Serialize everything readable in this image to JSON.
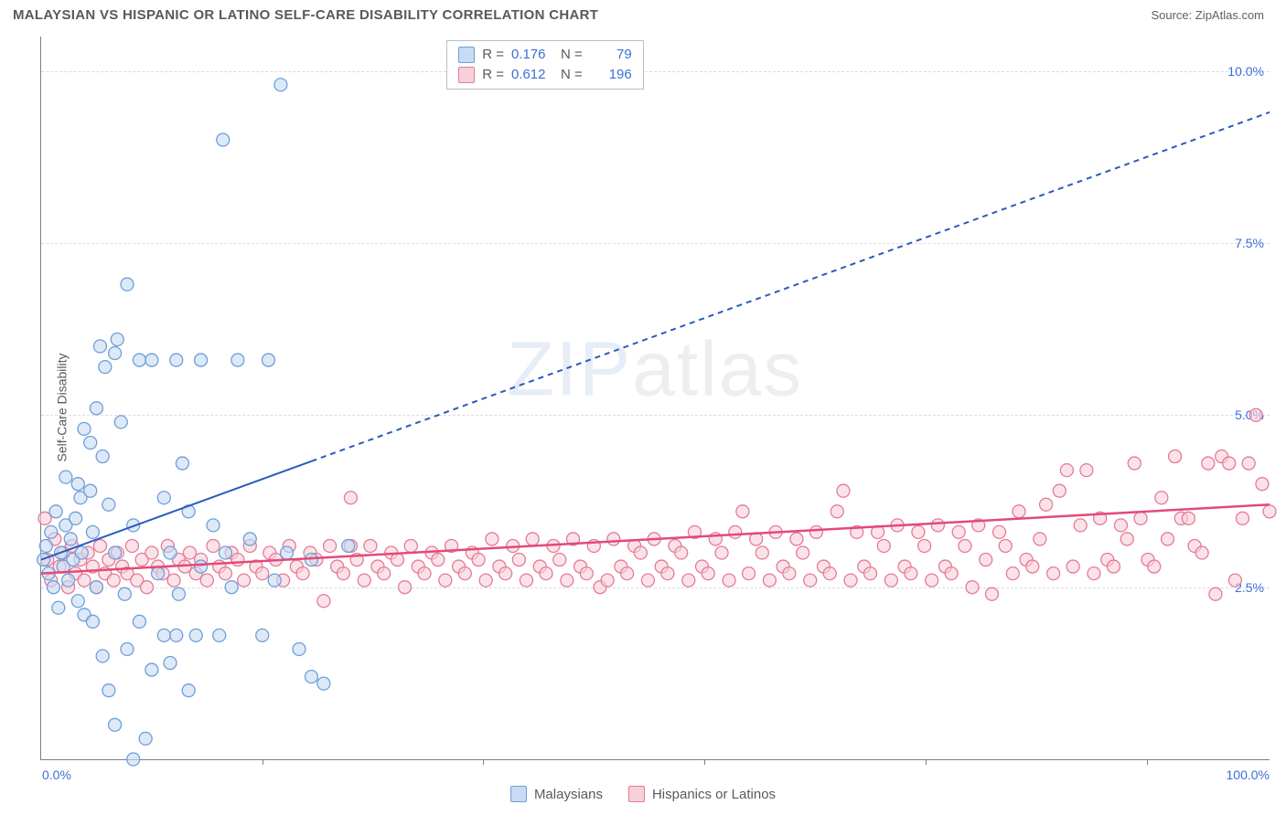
{
  "title": "MALAYSIAN VS HISPANIC OR LATINO SELF-CARE DISABILITY CORRELATION CHART",
  "source": "Source: ZipAtlas.com",
  "ylabel": "Self-Care Disability",
  "watermark_a": "ZIP",
  "watermark_b": "atlas",
  "chart": {
    "type": "scatter",
    "xlim": [
      0,
      100
    ],
    "ylim": [
      0,
      10.5
    ],
    "x_axis_label_min": "0.0%",
    "x_axis_label_max": "100.0%",
    "y_ticks": [
      2.5,
      5.0,
      7.5,
      10.0
    ],
    "y_tick_labels": [
      "2.5%",
      "5.0%",
      "7.5%",
      "10.0%"
    ],
    "x_minor_ticks": [
      18,
      36,
      54,
      72,
      90
    ],
    "grid_color": "#d9dde2",
    "axis_color": "#7a7f86",
    "background_color": "#ffffff",
    "marker_radius": 7,
    "marker_stroke_width": 1.3,
    "series": [
      {
        "name": "Malaysians",
        "color_fill": "#c7dbf2",
        "color_stroke": "#6f9fd8",
        "R": "0.176",
        "N": "79",
        "trend": {
          "x1": 0,
          "y1": 2.9,
          "x2": 100,
          "y2": 9.4,
          "solid_until_x": 22,
          "color": "#2a5bbd",
          "width": 2,
          "dash": "6,5"
        },
        "points": [
          [
            0.2,
            2.9
          ],
          [
            0.4,
            3.1
          ],
          [
            0.6,
            2.7
          ],
          [
            0.8,
            3.3
          ],
          [
            1.0,
            2.5
          ],
          [
            1.2,
            3.6
          ],
          [
            1.4,
            2.2
          ],
          [
            1.6,
            3.0
          ],
          [
            1.8,
            2.8
          ],
          [
            2.0,
            3.4
          ],
          [
            2.2,
            2.6
          ],
          [
            2.4,
            3.2
          ],
          [
            2.6,
            2.9
          ],
          [
            2.8,
            3.5
          ],
          [
            3.0,
            2.3
          ],
          [
            3.2,
            3.8
          ],
          [
            3.3,
            3.0
          ],
          [
            3.5,
            2.1
          ],
          [
            3.5,
            4.8
          ],
          [
            4.0,
            4.6
          ],
          [
            4.0,
            3.9
          ],
          [
            4.2,
            2.0
          ],
          [
            4.2,
            3.3
          ],
          [
            4.5,
            5.1
          ],
          [
            4.5,
            2.5
          ],
          [
            5.0,
            4.4
          ],
          [
            5.0,
            1.5
          ],
          [
            5.2,
            5.7
          ],
          [
            5.5,
            3.7
          ],
          [
            5.5,
            1.0
          ],
          [
            6.0,
            5.9
          ],
          [
            6.0,
            3.0
          ],
          [
            6.0,
            0.5
          ],
          [
            6.5,
            4.9
          ],
          [
            6.8,
            2.4
          ],
          [
            7.0,
            6.9
          ],
          [
            7.0,
            1.6
          ],
          [
            7.5,
            0.0
          ],
          [
            7.5,
            3.4
          ],
          [
            8.0,
            5.8
          ],
          [
            8.0,
            2.0
          ],
          [
            8.5,
            0.3
          ],
          [
            9.0,
            5.8
          ],
          [
            9.0,
            1.3
          ],
          [
            9.5,
            2.7
          ],
          [
            10.0,
            3.8
          ],
          [
            10.0,
            1.8
          ],
          [
            10.5,
            3.0
          ],
          [
            10.5,
            1.4
          ],
          [
            11.0,
            5.8
          ],
          [
            11.0,
            1.8
          ],
          [
            11.2,
            2.4
          ],
          [
            11.5,
            4.3
          ],
          [
            12.0,
            1.0
          ],
          [
            12.0,
            3.6
          ],
          [
            12.6,
            1.8
          ],
          [
            13.0,
            5.8
          ],
          [
            13.0,
            2.8
          ],
          [
            14.0,
            3.4
          ],
          [
            14.5,
            1.8
          ],
          [
            14.8,
            9.0
          ],
          [
            15.0,
            3.0
          ],
          [
            15.5,
            2.5
          ],
          [
            16.0,
            5.8
          ],
          [
            17.0,
            3.2
          ],
          [
            18.0,
            1.8
          ],
          [
            18.5,
            5.8
          ],
          [
            19.0,
            2.6
          ],
          [
            19.5,
            9.8
          ],
          [
            20.0,
            3.0
          ],
          [
            21.0,
            1.6
          ],
          [
            22.0,
            2.9
          ],
          [
            23.0,
            1.1
          ],
          [
            25.0,
            3.1
          ],
          [
            22.0,
            1.2
          ],
          [
            4.8,
            6.0
          ],
          [
            6.2,
            6.1
          ],
          [
            3.0,
            4.0
          ],
          [
            2.0,
            4.1
          ]
        ]
      },
      {
        "name": "Hispanics or Latinos",
        "color_fill": "#f6d0d8",
        "color_stroke": "#e67a98",
        "R": "0.612",
        "N": "196",
        "trend": {
          "x1": 0,
          "y1": 2.7,
          "x2": 100,
          "y2": 3.7,
          "solid_until_x": 100,
          "color": "#e24a7a",
          "width": 2.5,
          "dash": ""
        },
        "points": [
          [
            0.3,
            3.5
          ],
          [
            0.5,
            2.9
          ],
          [
            0.8,
            2.6
          ],
          [
            1.1,
            3.2
          ],
          [
            1.5,
            2.8
          ],
          [
            1.8,
            3.0
          ],
          [
            2.2,
            2.5
          ],
          [
            2.5,
            3.1
          ],
          [
            2.8,
            2.7
          ],
          [
            3.2,
            2.9
          ],
          [
            3.5,
            2.6
          ],
          [
            3.8,
            3.0
          ],
          [
            4.2,
            2.8
          ],
          [
            4.5,
            2.5
          ],
          [
            4.8,
            3.1
          ],
          [
            5.2,
            2.7
          ],
          [
            5.5,
            2.9
          ],
          [
            5.9,
            2.6
          ],
          [
            6.2,
            3.0
          ],
          [
            6.6,
            2.8
          ],
          [
            7.0,
            2.7
          ],
          [
            7.4,
            3.1
          ],
          [
            7.8,
            2.6
          ],
          [
            8.2,
            2.9
          ],
          [
            8.6,
            2.5
          ],
          [
            9.0,
            3.0
          ],
          [
            9.5,
            2.8
          ],
          [
            9.9,
            2.7
          ],
          [
            10.3,
            3.1
          ],
          [
            10.8,
            2.6
          ],
          [
            11.2,
            2.9
          ],
          [
            11.7,
            2.8
          ],
          [
            12.1,
            3.0
          ],
          [
            12.6,
            2.7
          ],
          [
            13.0,
            2.9
          ],
          [
            13.5,
            2.6
          ],
          [
            14.0,
            3.1
          ],
          [
            14.5,
            2.8
          ],
          [
            15.0,
            2.7
          ],
          [
            15.5,
            3.0
          ],
          [
            16.0,
            2.9
          ],
          [
            16.5,
            2.6
          ],
          [
            17.0,
            3.1
          ],
          [
            17.5,
            2.8
          ],
          [
            18.0,
            2.7
          ],
          [
            18.6,
            3.0
          ],
          [
            19.1,
            2.9
          ],
          [
            19.7,
            2.6
          ],
          [
            20.2,
            3.1
          ],
          [
            20.8,
            2.8
          ],
          [
            21.3,
            2.7
          ],
          [
            21.9,
            3.0
          ],
          [
            22.4,
            2.9
          ],
          [
            23.0,
            2.3
          ],
          [
            23.5,
            3.1
          ],
          [
            24.1,
            2.8
          ],
          [
            24.6,
            2.7
          ],
          [
            25.2,
            3.1
          ],
          [
            25.2,
            3.8
          ],
          [
            25.7,
            2.9
          ],
          [
            26.3,
            2.6
          ],
          [
            26.8,
            3.1
          ],
          [
            27.4,
            2.8
          ],
          [
            27.9,
            2.7
          ],
          [
            28.5,
            3.0
          ],
          [
            29.0,
            2.9
          ],
          [
            29.6,
            2.5
          ],
          [
            30.1,
            3.1
          ],
          [
            30.7,
            2.8
          ],
          [
            31.2,
            2.7
          ],
          [
            31.8,
            3.0
          ],
          [
            32.3,
            2.9
          ],
          [
            32.9,
            2.6
          ],
          [
            33.4,
            3.1
          ],
          [
            34.0,
            2.8
          ],
          [
            34.5,
            2.7
          ],
          [
            35.1,
            3.0
          ],
          [
            35.6,
            2.9
          ],
          [
            36.2,
            2.6
          ],
          [
            36.7,
            3.2
          ],
          [
            37.3,
            2.8
          ],
          [
            37.8,
            2.7
          ],
          [
            38.4,
            3.1
          ],
          [
            38.9,
            2.9
          ],
          [
            39.5,
            2.6
          ],
          [
            40.0,
            3.2
          ],
          [
            40.6,
            2.8
          ],
          [
            41.1,
            2.7
          ],
          [
            41.7,
            3.1
          ],
          [
            42.2,
            2.9
          ],
          [
            42.8,
            2.6
          ],
          [
            43.3,
            3.2
          ],
          [
            43.9,
            2.8
          ],
          [
            44.4,
            2.7
          ],
          [
            45.0,
            3.1
          ],
          [
            45.5,
            2.5
          ],
          [
            46.1,
            2.6
          ],
          [
            46.6,
            3.2
          ],
          [
            47.2,
            2.8
          ],
          [
            47.7,
            2.7
          ],
          [
            48.3,
            3.1
          ],
          [
            48.8,
            3.0
          ],
          [
            49.4,
            2.6
          ],
          [
            49.9,
            3.2
          ],
          [
            50.5,
            2.8
          ],
          [
            51.0,
            2.7
          ],
          [
            51.6,
            3.1
          ],
          [
            52.1,
            3.0
          ],
          [
            52.7,
            2.6
          ],
          [
            53.2,
            3.3
          ],
          [
            53.8,
            2.8
          ],
          [
            54.3,
            2.7
          ],
          [
            54.9,
            3.2
          ],
          [
            55.4,
            3.0
          ],
          [
            56.0,
            2.6
          ],
          [
            56.5,
            3.3
          ],
          [
            57.1,
            3.6
          ],
          [
            57.6,
            2.7
          ],
          [
            58.2,
            3.2
          ],
          [
            58.7,
            3.0
          ],
          [
            59.3,
            2.6
          ],
          [
            59.8,
            3.3
          ],
          [
            60.4,
            2.8
          ],
          [
            60.9,
            2.7
          ],
          [
            61.5,
            3.2
          ],
          [
            62.0,
            3.0
          ],
          [
            62.6,
            2.6
          ],
          [
            63.1,
            3.3
          ],
          [
            63.7,
            2.8
          ],
          [
            64.2,
            2.7
          ],
          [
            64.8,
            3.6
          ],
          [
            65.3,
            3.9
          ],
          [
            65.9,
            2.6
          ],
          [
            66.4,
            3.3
          ],
          [
            67.0,
            2.8
          ],
          [
            67.5,
            2.7
          ],
          [
            68.1,
            3.3
          ],
          [
            68.6,
            3.1
          ],
          [
            69.2,
            2.6
          ],
          [
            69.7,
            3.4
          ],
          [
            70.3,
            2.8
          ],
          [
            70.8,
            2.7
          ],
          [
            71.4,
            3.3
          ],
          [
            71.9,
            3.1
          ],
          [
            72.5,
            2.6
          ],
          [
            73.0,
            3.4
          ],
          [
            73.6,
            2.8
          ],
          [
            74.1,
            2.7
          ],
          [
            74.7,
            3.3
          ],
          [
            75.2,
            3.1
          ],
          [
            75.8,
            2.5
          ],
          [
            76.3,
            3.4
          ],
          [
            76.9,
            2.9
          ],
          [
            77.4,
            2.4
          ],
          [
            78.0,
            3.3
          ],
          [
            78.5,
            3.1
          ],
          [
            79.1,
            2.7
          ],
          [
            79.6,
            3.6
          ],
          [
            80.2,
            2.9
          ],
          [
            80.7,
            2.8
          ],
          [
            81.3,
            3.2
          ],
          [
            81.8,
            3.7
          ],
          [
            82.4,
            2.7
          ],
          [
            82.9,
            3.9
          ],
          [
            83.5,
            4.2
          ],
          [
            84.0,
            2.8
          ],
          [
            84.6,
            3.4
          ],
          [
            85.1,
            4.2
          ],
          [
            85.7,
            2.7
          ],
          [
            86.2,
            3.5
          ],
          [
            86.8,
            2.9
          ],
          [
            87.3,
            2.8
          ],
          [
            87.9,
            3.4
          ],
          [
            88.4,
            3.2
          ],
          [
            89.0,
            4.3
          ],
          [
            89.5,
            3.5
          ],
          [
            90.1,
            2.9
          ],
          [
            90.6,
            2.8
          ],
          [
            91.2,
            3.8
          ],
          [
            91.7,
            3.2
          ],
          [
            92.3,
            4.4
          ],
          [
            92.8,
            3.5
          ],
          [
            93.4,
            3.5
          ],
          [
            93.9,
            3.1
          ],
          [
            94.5,
            3.0
          ],
          [
            95.0,
            4.3
          ],
          [
            95.6,
            2.4
          ],
          [
            96.1,
            4.4
          ],
          [
            96.7,
            4.3
          ],
          [
            97.2,
            2.6
          ],
          [
            97.8,
            3.5
          ],
          [
            98.3,
            4.3
          ],
          [
            98.9,
            5.0
          ],
          [
            99.4,
            4.0
          ],
          [
            100,
            3.6
          ]
        ]
      }
    ]
  },
  "legend_top": {
    "r_label": "R =",
    "n_label": "N ="
  },
  "legend_bottom": {
    "label_a": "Malaysians",
    "label_b": "Hispanics or Latinos"
  }
}
